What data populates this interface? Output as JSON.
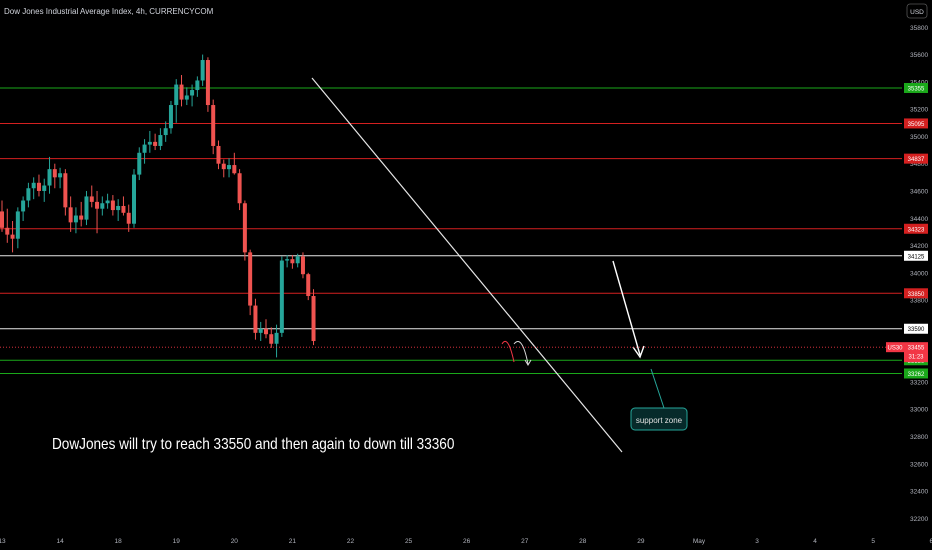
{
  "header": {
    "title": "Dow Jones Industrial Average Index, 4h, CURRENCYCOM",
    "currency_button": "USD"
  },
  "annotations": {
    "idea_text": "DowJones will try to reach 33550 and then again to down till 33360",
    "support_label": "support zone"
  },
  "chart_data": {
    "type": "candlestick",
    "ylim": [
      32100,
      36000
    ],
    "y_ticks": [
      32200,
      32400,
      32600,
      32800,
      33000,
      33200,
      33400,
      33600,
      33800,
      34000,
      34200,
      34400,
      34600,
      34800,
      35000,
      35200,
      35400,
      35600,
      35800
    ],
    "x_ticks": [
      "13",
      "14",
      "18",
      "19",
      "20",
      "21",
      "22",
      "25",
      "26",
      "27",
      "28",
      "29",
      "May",
      "3",
      "4",
      "5",
      "6"
    ],
    "x_tick_positions_bars": [
      0,
      11,
      22,
      33,
      44,
      55,
      66,
      77,
      88,
      99,
      110,
      121,
      132,
      143,
      154,
      165,
      176
    ],
    "price_levels": [
      {
        "label": "35355",
        "value": 35355,
        "color": "#1aa81a"
      },
      {
        "label": "35095",
        "value": 35095,
        "color": "#d42020"
      },
      {
        "label": "34837",
        "value": 34837,
        "color": "#d42020"
      },
      {
        "label": "34323",
        "value": 34323,
        "color": "#d42020"
      },
      {
        "label": "34125",
        "value": 34125,
        "color": "#e8e8e8"
      },
      {
        "label": "33850",
        "value": 33850,
        "color": "#d42020"
      },
      {
        "label": "33590",
        "value": 33590,
        "color": "#e8e8e8"
      },
      {
        "label": "33359",
        "value": 33359,
        "color": "#1aa81a"
      },
      {
        "label": "33262",
        "value": 33262,
        "color": "#1aa81a"
      }
    ],
    "current_price": {
      "symbol": "US30",
      "value": 33455,
      "countdown": "31:23",
      "color": "#f23645"
    },
    "candles": [
      [
        34450,
        34530,
        34300,
        34330
      ],
      [
        34330,
        34470,
        34220,
        34280
      ],
      [
        34280,
        34380,
        34150,
        34250
      ],
      [
        34250,
        34480,
        34180,
        34450
      ],
      [
        34450,
        34560,
        34380,
        34530
      ],
      [
        34530,
        34660,
        34480,
        34620
      ],
      [
        34620,
        34700,
        34540,
        34660
      ],
      [
        34660,
        34720,
        34560,
        34600
      ],
      [
        34600,
        34690,
        34520,
        34640
      ],
      [
        34640,
        34850,
        34580,
        34760
      ],
      [
        34760,
        34800,
        34620,
        34700
      ],
      [
        34700,
        34770,
        34620,
        34730
      ],
      [
        34730,
        34760,
        34420,
        34480
      ],
      [
        34480,
        34560,
        34300,
        34370
      ],
      [
        34370,
        34480,
        34290,
        34420
      ],
      [
        34420,
        34520,
        34340,
        34390
      ],
      [
        34390,
        34600,
        34350,
        34560
      ],
      [
        34560,
        34640,
        34480,
        34520
      ],
      [
        34520,
        34600,
        34290,
        34470
      ],
      [
        34470,
        34560,
        34420,
        34510
      ],
      [
        34510,
        34580,
        34470,
        34530
      ],
      [
        34530,
        34570,
        34420,
        34460
      ],
      [
        34460,
        34540,
        34380,
        34490
      ],
      [
        34490,
        34560,
        34420,
        34440
      ],
      [
        34440,
        34500,
        34300,
        34360
      ],
      [
        34360,
        34760,
        34330,
        34720
      ],
      [
        34720,
        34920,
        34680,
        34880
      ],
      [
        34880,
        34980,
        34800,
        34940
      ],
      [
        34940,
        35040,
        34880,
        34960
      ],
      [
        34960,
        35020,
        34900,
        34930
      ],
      [
        34930,
        35060,
        34900,
        35010
      ],
      [
        35010,
        35110,
        34960,
        35060
      ],
      [
        35060,
        35260,
        35020,
        35230
      ],
      [
        35230,
        35420,
        35100,
        35380
      ],
      [
        35380,
        35450,
        35220,
        35270
      ],
      [
        35270,
        35360,
        35230,
        35300
      ],
      [
        35300,
        35380,
        35220,
        35340
      ],
      [
        35340,
        35440,
        35290,
        35410
      ],
      [
        35410,
        35600,
        35370,
        35560
      ],
      [
        35560,
        35580,
        35180,
        35230
      ],
      [
        35230,
        35270,
        34870,
        34930
      ],
      [
        34930,
        34970,
        34760,
        34800
      ],
      [
        34800,
        34830,
        34700,
        34760
      ],
      [
        34760,
        34840,
        34700,
        34790
      ],
      [
        34790,
        34880,
        34720,
        34730
      ],
      [
        34730,
        34760,
        34460,
        34510
      ],
      [
        34510,
        34530,
        34090,
        34150
      ],
      [
        34150,
        34170,
        33690,
        33760
      ],
      [
        33760,
        33810,
        33510,
        33560
      ],
      [
        33560,
        33640,
        33500,
        33590
      ],
      [
        33590,
        33660,
        33520,
        33550
      ],
      [
        33550,
        33600,
        33450,
        33480
      ],
      [
        33480,
        33620,
        33380,
        33560
      ],
      [
        33560,
        34120,
        33530,
        34090
      ],
      [
        34090,
        34130,
        34040,
        34100
      ],
      [
        34100,
        34130,
        34030,
        34070
      ],
      [
        34070,
        34140,
        34040,
        34120
      ],
      [
        34120,
        34150,
        33960,
        33990
      ],
      [
        33990,
        34000,
        33800,
        33830
      ],
      [
        33830,
        33880,
        33470,
        33500
      ]
    ]
  }
}
